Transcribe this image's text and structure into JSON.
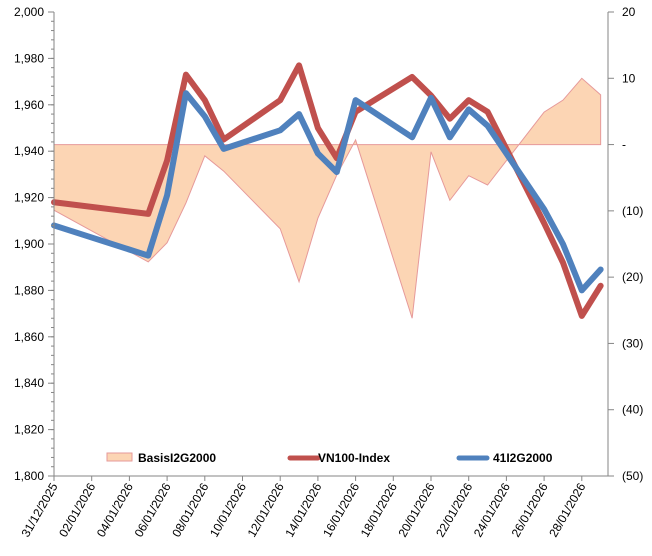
{
  "chart_data": {
    "type": "line",
    "title": "",
    "xlabel": "",
    "ylabel": "",
    "y2label": "",
    "x": [
      "31/12/2025",
      "05/01/2026",
      "06/01/2026",
      "07/01/2026",
      "08/01/2026",
      "09/01/2026",
      "12/01/2026",
      "13/01/2026",
      "14/01/2026",
      "15/01/2026",
      "16/01/2026",
      "19/01/2026",
      "20/01/2026",
      "21/01/2026",
      "22/01/2026",
      "23/01/2026",
      "26/01/2026",
      "27/01/2026",
      "28/01/2026",
      "29/01/2026"
    ],
    "x_day_offsets": [
      0,
      5,
      6,
      7,
      8,
      9,
      12,
      13,
      14,
      15,
      16,
      19,
      20,
      21,
      22,
      23,
      26,
      27,
      28,
      29
    ],
    "x_tick_labels": [
      "31/12/2025",
      "02/01/2026",
      "04/01/2026",
      "06/01/2026",
      "08/01/2026",
      "10/01/2026",
      "12/01/2026",
      "14/01/2026",
      "16/01/2026",
      "18/01/2026",
      "20/01/2026",
      "22/01/2026",
      "24/01/2026",
      "26/01/2026",
      "28/01/2026"
    ],
    "x_range_days": [
      0,
      29.4
    ],
    "ylim": [
      1800,
      2000
    ],
    "y_ticks": [
      1800,
      1820,
      1840,
      1860,
      1880,
      1900,
      1920,
      1940,
      1960,
      1980,
      2000
    ],
    "y_tick_labels": [
      "1,800",
      "1,820",
      "1,840",
      "1,860",
      "1,880",
      "1,900",
      "1,920",
      "1,940",
      "1,960",
      "1,980",
      "2,000"
    ],
    "y2lim": [
      -50,
      20
    ],
    "y2_ticks": [
      -50,
      -40,
      -30,
      -20,
      -10,
      0,
      10,
      20
    ],
    "y2_tick_labels": [
      "(50)",
      "(40)",
      "(30)",
      "(20)",
      "(10)",
      "-",
      "10",
      "20"
    ],
    "grid": false,
    "legend_position": "bottom-inside",
    "series": [
      {
        "name": "BasisI2G2000",
        "type": "area",
        "axis": "right",
        "color": "#FCD5B4",
        "edge_color": "#E6999A",
        "values": [
          -9.9,
          -17.7,
          -14.8,
          -8.8,
          -1.7,
          -4.0,
          -12.7,
          -20.7,
          -11.1,
          -4.6,
          0.7,
          -26.2,
          -1.1,
          -8.4,
          -4.7,
          -6.1,
          4.9,
          6.7,
          10.0,
          7.5
        ]
      },
      {
        "name": "VN100-Index",
        "type": "line",
        "axis": "left",
        "color": "#C0504D",
        "values": [
          1918,
          1913,
          1936,
          1973,
          1962,
          1945,
          1962,
          1977,
          1950,
          1937,
          1957,
          1972,
          1964,
          1954,
          1962,
          1957,
          1909,
          1892,
          1869,
          1882
        ]
      },
      {
        "name": "41I2G2000",
        "type": "line",
        "axis": "left",
        "color": "#4F81BD",
        "values": [
          1908,
          1895,
          1921,
          1965,
          1955,
          1941,
          1949,
          1956,
          1939,
          1931,
          1962,
          1946,
          1963,
          1946,
          1958,
          1951,
          1915,
          1900,
          1880,
          1889
        ]
      }
    ]
  }
}
